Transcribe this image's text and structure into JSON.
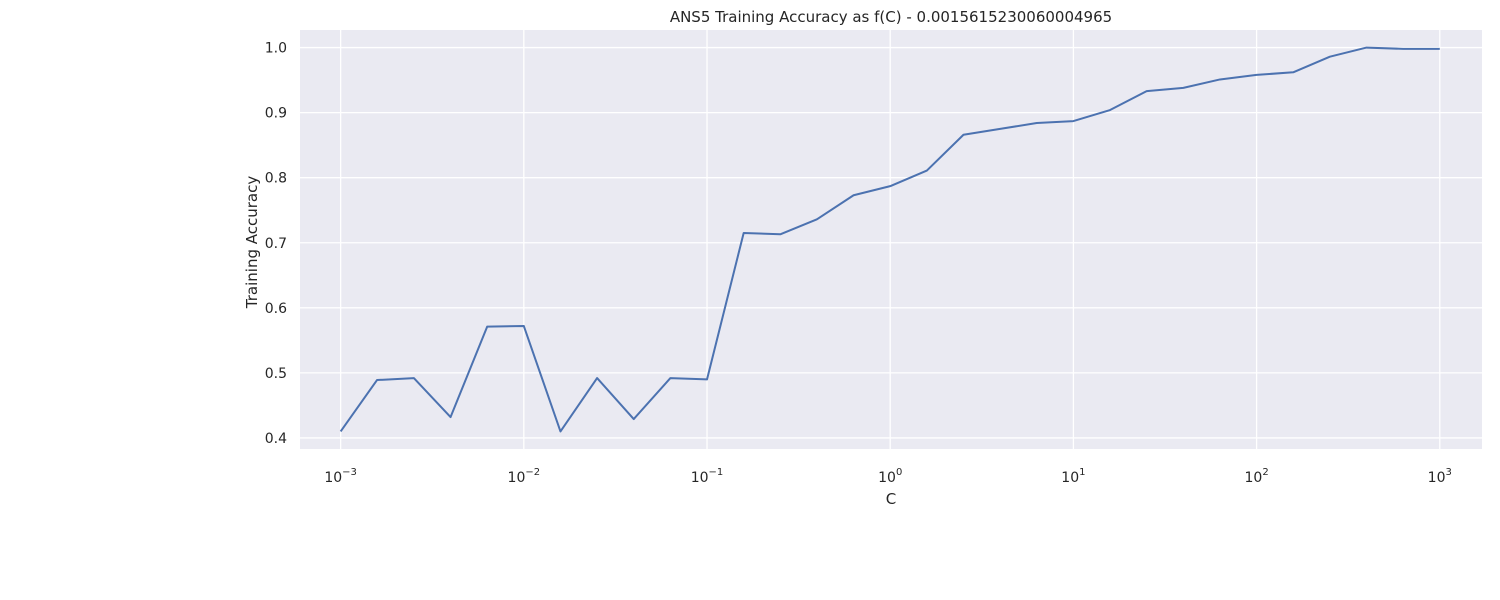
{
  "chart_data": {
    "type": "line",
    "title": "ANS5 Training Accuracy as f(C) - 0.0015615230060004965",
    "xlabel": "C",
    "ylabel": "Training Accuracy",
    "xscale": "log",
    "xlim": [
      0.0006,
      1700
    ],
    "ylim": [
      0.383,
      1.027
    ],
    "grid": true,
    "background_color": "#eaeaf2",
    "grid_color": "#ffffff",
    "line_color": "#4c72b0",
    "x_ticks": [
      {
        "base": "10",
        "exp": "−3",
        "value": 0.001
      },
      {
        "base": "10",
        "exp": "−2",
        "value": 0.01
      },
      {
        "base": "10",
        "exp": "−1",
        "value": 0.1
      },
      {
        "base": "10",
        "exp": "0",
        "value": 1
      },
      {
        "base": "10",
        "exp": "1",
        "value": 10
      },
      {
        "base": "10",
        "exp": "2",
        "value": 100
      },
      {
        "base": "10",
        "exp": "3",
        "value": 1000
      }
    ],
    "y_ticks": [
      {
        "label": "0.4",
        "value": 0.4
      },
      {
        "label": "0.5",
        "value": 0.5
      },
      {
        "label": "0.6",
        "value": 0.6
      },
      {
        "label": "0.7",
        "value": 0.7
      },
      {
        "label": "0.8",
        "value": 0.8
      },
      {
        "label": "0.9",
        "value": 0.9
      },
      {
        "label": "1.0",
        "value": 1.0
      }
    ],
    "series": [
      {
        "x": [
          0.001,
          0.00158,
          0.00251,
          0.00398,
          0.00631,
          0.01,
          0.01585,
          0.02512,
          0.03981,
          0.0631,
          0.1,
          0.1585,
          0.2512,
          0.3981,
          0.631,
          1.0,
          1.585,
          2.512,
          3.981,
          6.31,
          10.0,
          15.85,
          25.12,
          39.81,
          63.1,
          100.0,
          158.5,
          251.2,
          398.1,
          631.0,
          1000.0
        ],
        "y": [
          0.41,
          0.489,
          0.492,
          0.432,
          0.571,
          0.572,
          0.41,
          0.492,
          0.429,
          0.492,
          0.49,
          0.715,
          0.713,
          0.736,
          0.773,
          0.787,
          0.811,
          0.866,
          0.875,
          0.884,
          0.887,
          0.904,
          0.933,
          0.938,
          0.951,
          0.958,
          0.962,
          0.986,
          1.0,
          0.998,
          0.998
        ]
      }
    ]
  }
}
